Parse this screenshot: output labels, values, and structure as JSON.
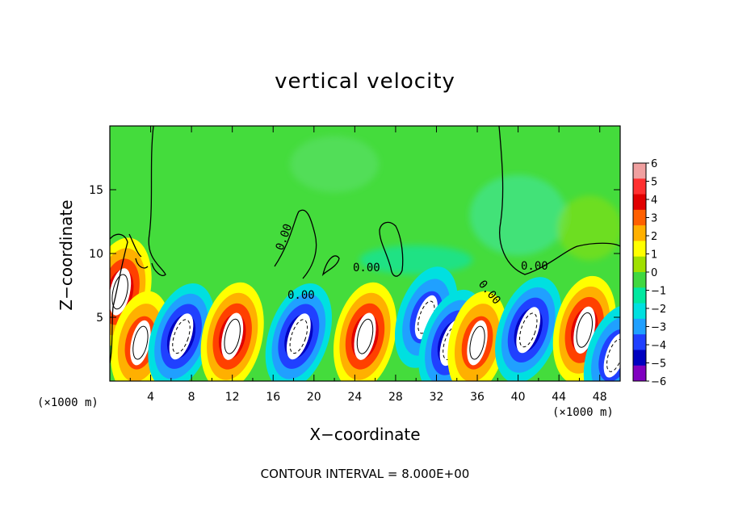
{
  "chart_data": {
    "type": "heatmap",
    "title": "vertical velocity",
    "xlabel": "X−coordinate",
    "ylabel": "Z−coordinate",
    "x_unit_left": "(×1000 m)",
    "x_unit_right": "(×1000 m)",
    "note": "CONTOUR INTERVAL = 8.000E+00",
    "xlim": [
      0,
      50
    ],
    "ylim": [
      0,
      20
    ],
    "xticks": [
      4,
      8,
      12,
      16,
      20,
      24,
      28,
      32,
      36,
      40,
      44,
      48
    ],
    "yticks": [
      5,
      10,
      15
    ],
    "colorbar": {
      "ticks": [
        6,
        5,
        4,
        3,
        2,
        1,
        0,
        -1,
        -2,
        -3,
        -4,
        -5,
        -6
      ],
      "colors": [
        "#f0a0a0",
        "#ff3030",
        "#e00000",
        "#ff6000",
        "#ffb000",
        "#ffff00",
        "#a0e000",
        "#40d840",
        "#00e8a0",
        "#00e0e0",
        "#20a0ff",
        "#2040ff",
        "#0000c0",
        "#8000c0"
      ]
    },
    "contour_labels": [
      "0.00",
      "0.00",
      "0.00",
      "0.00",
      "0.00"
    ],
    "features": [
      {
        "kind": "updraft",
        "x": 1,
        "z": 7,
        "level": 6
      },
      {
        "kind": "updraft",
        "x": 3,
        "z": 3,
        "level": 5
      },
      {
        "kind": "downdraft",
        "x": 7,
        "z": 3.5,
        "level": -6
      },
      {
        "kind": "updraft",
        "x": 12,
        "z": 3.5,
        "level": 6
      },
      {
        "kind": "downdraft",
        "x": 18.5,
        "z": 3.5,
        "level": -6
      },
      {
        "kind": "updraft",
        "x": 25,
        "z": 3.5,
        "level": 6
      },
      {
        "kind": "downdraft",
        "x": 31,
        "z": 5,
        "level": -5
      },
      {
        "kind": "downdraft",
        "x": 33.5,
        "z": 3,
        "level": -6
      },
      {
        "kind": "updraft",
        "x": 36,
        "z": 3,
        "level": 5
      },
      {
        "kind": "downdraft",
        "x": 41,
        "z": 4,
        "level": -6
      },
      {
        "kind": "updraft",
        "x": 46.5,
        "z": 4,
        "level": 6
      },
      {
        "kind": "downdraft",
        "x": 49.5,
        "z": 2,
        "level": -5
      }
    ]
  }
}
